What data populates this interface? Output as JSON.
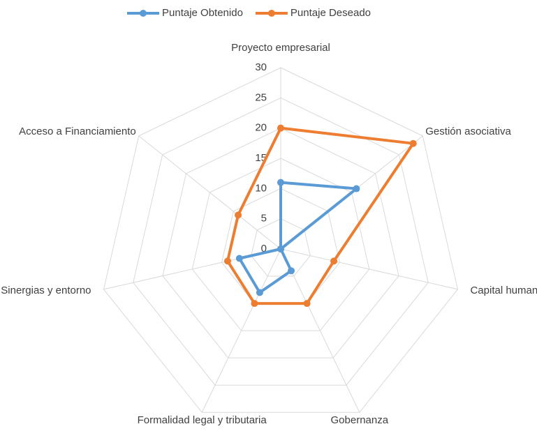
{
  "chart_data": {
    "type": "radar",
    "categories": [
      "Proyecto empresarial",
      "Gestión asociativa",
      "Capital humano",
      "Gobernanza",
      "Formalidad legal y tributaria",
      "Sinergias y entorno",
      "Acceso a Financiamiento"
    ],
    "series": [
      {
        "name": "Puntaje Obtenido",
        "color": "#5b9bd5",
        "values": [
          11,
          16,
          0,
          4,
          8,
          7,
          0
        ]
      },
      {
        "name": "Puntaje Deseado",
        "color": "#ed7d31",
        "values": [
          20,
          28,
          9,
          10,
          10,
          9,
          9
        ]
      }
    ],
    "ylim": [
      0,
      30
    ],
    "yticks": [
      0,
      5,
      10,
      15,
      20,
      25,
      30
    ],
    "grid": true,
    "legend": "top"
  }
}
